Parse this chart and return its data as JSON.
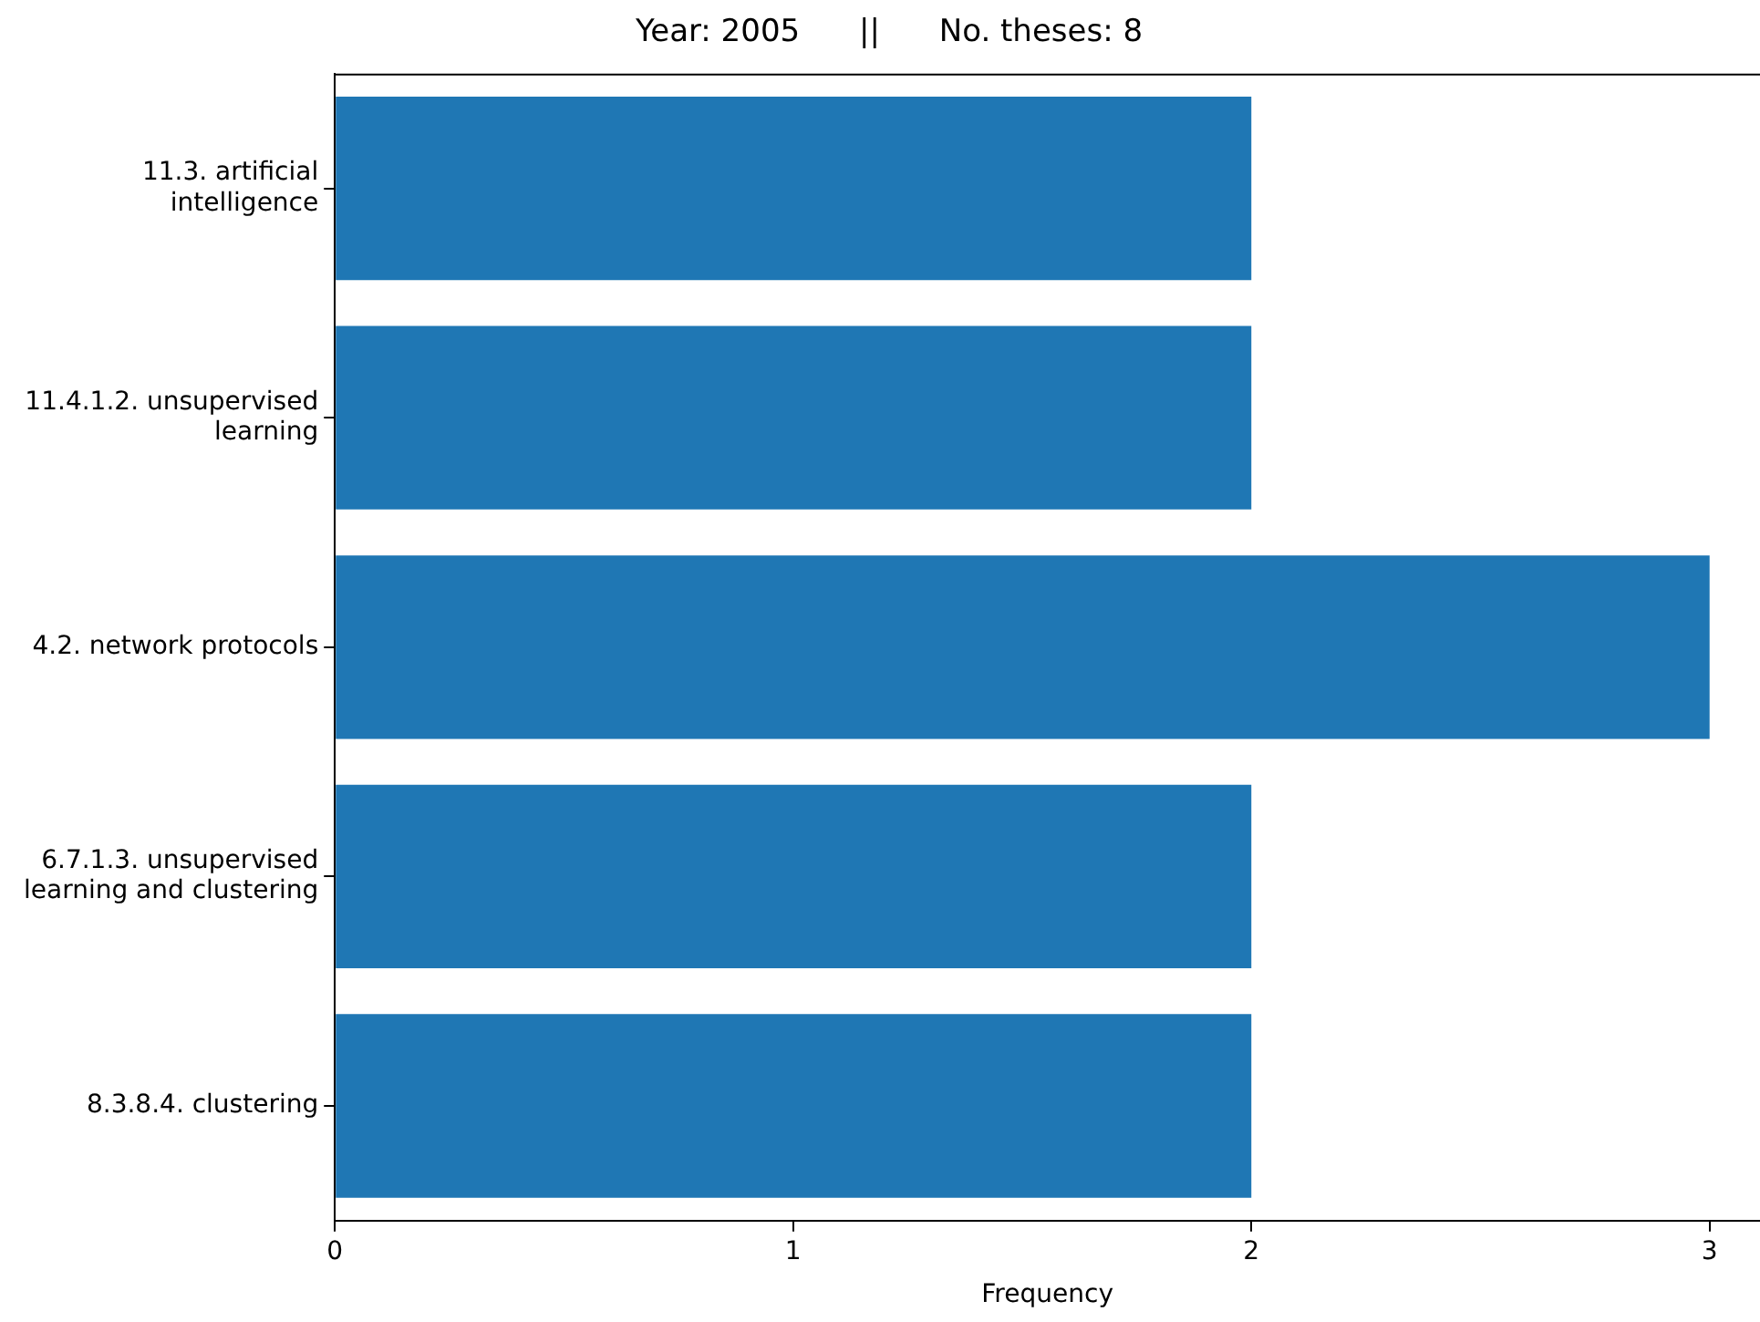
{
  "chart_data": {
    "type": "bar",
    "orientation": "horizontal",
    "title": "Year: 2005      ||      No. theses: 8",
    "xlabel": "Frequency",
    "categories": [
      "11.3. artificial intelligence",
      "11.4.1.2. unsupervised learning",
      "4.2. network protocols",
      "6.7.1.3. unsupervised learning and clustering",
      "8.3.8.4. clustering"
    ],
    "values": [
      2,
      2,
      3,
      2,
      2
    ],
    "color": "#1f77b4",
    "xlim": [
      0,
      3.11
    ],
    "xticks": [
      0,
      1,
      2,
      3
    ],
    "grid": false,
    "legend": false
  }
}
